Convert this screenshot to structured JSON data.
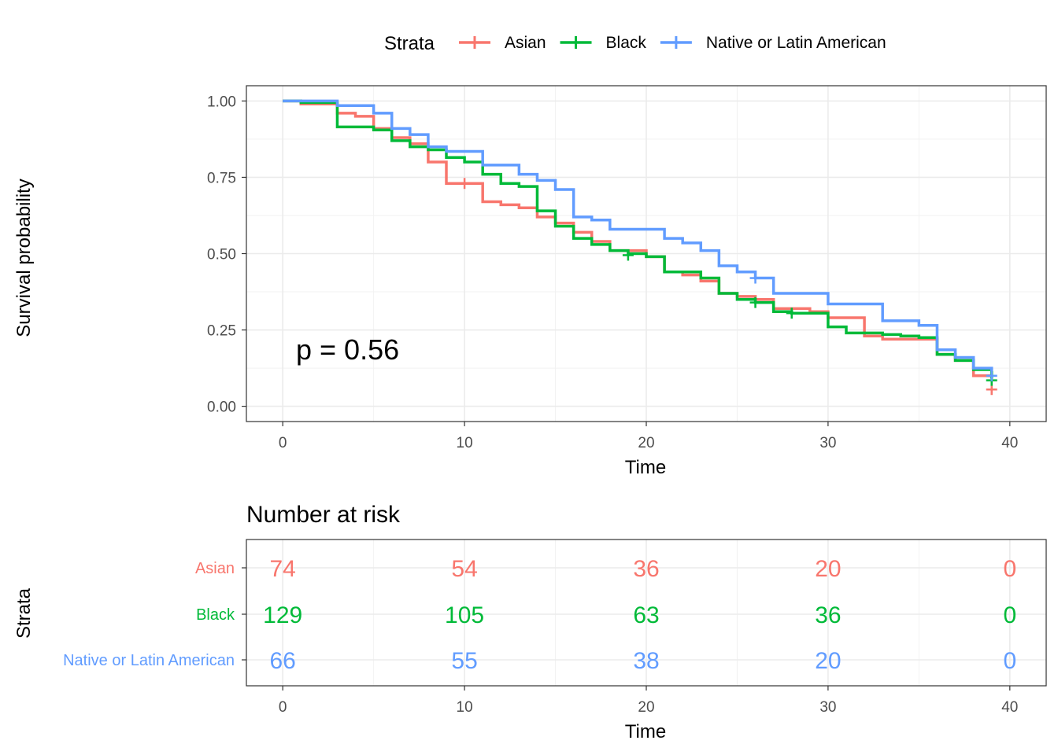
{
  "legend": {
    "title": "Strata",
    "items": [
      {
        "label": "Asian",
        "color": "#F8766D"
      },
      {
        "label": "Black",
        "color": "#00BA38"
      },
      {
        "label": "Native or Latin American",
        "color": "#619CFF"
      }
    ]
  },
  "pvalue_text": "p = 0.56",
  "risk_table": {
    "title": "Number at risk",
    "ylabel": "Strata",
    "xlabel": "Time",
    "times": [
      0,
      10,
      20,
      30,
      40
    ],
    "rows": [
      {
        "label": "Asian",
        "color": "#F8766D",
        "values": [
          74,
          54,
          36,
          20,
          0
        ]
      },
      {
        "label": "Black",
        "color": "#00BA38",
        "values": [
          129,
          105,
          63,
          36,
          0
        ]
      },
      {
        "label": "Native or Latin American",
        "color": "#619CFF",
        "values": [
          66,
          55,
          38,
          20,
          0
        ]
      }
    ]
  },
  "chart_data": {
    "type": "line",
    "subtype": "kaplan-meier step",
    "xlabel": "Time",
    "ylabel": "Survival probability",
    "xlim": [
      -2,
      42
    ],
    "ylim": [
      -0.05,
      1.05
    ],
    "xticks": [
      0,
      10,
      20,
      30,
      40
    ],
    "yticks": [
      0.0,
      0.25,
      0.5,
      0.75,
      1.0
    ],
    "ytick_labels": [
      "0.00",
      "0.25",
      "0.50",
      "0.75",
      "1.00"
    ],
    "grid": true,
    "legend_position": "top",
    "series": [
      {
        "name": "Asian",
        "color": "#F8766D",
        "steps": [
          [
            0,
            1.0
          ],
          [
            1,
            0.99
          ],
          [
            3,
            0.96
          ],
          [
            4,
            0.95
          ],
          [
            5,
            0.91
          ],
          [
            6,
            0.88
          ],
          [
            7,
            0.86
          ],
          [
            8,
            0.8
          ],
          [
            9,
            0.73
          ],
          [
            11,
            0.67
          ],
          [
            12,
            0.66
          ],
          [
            13,
            0.65
          ],
          [
            14,
            0.62
          ],
          [
            15,
            0.6
          ],
          [
            16,
            0.57
          ],
          [
            17,
            0.54
          ],
          [
            18,
            0.51
          ],
          [
            20,
            0.49
          ],
          [
            21,
            0.44
          ],
          [
            22,
            0.43
          ],
          [
            23,
            0.41
          ],
          [
            24,
            0.37
          ],
          [
            25,
            0.36
          ],
          [
            26,
            0.35
          ],
          [
            27,
            0.32
          ],
          [
            29,
            0.31
          ],
          [
            30,
            0.29
          ],
          [
            32,
            0.23
          ],
          [
            33,
            0.22
          ],
          [
            35,
            0.22
          ],
          [
            36,
            0.17
          ],
          [
            37,
            0.15
          ],
          [
            38,
            0.1
          ],
          [
            39,
            0.09
          ]
        ],
        "censor": [
          [
            10,
            0.73
          ],
          [
            39,
            0.055
          ]
        ]
      },
      {
        "name": "Black",
        "color": "#00BA38",
        "steps": [
          [
            0,
            1.0
          ],
          [
            1,
            0.995
          ],
          [
            3,
            0.915
          ],
          [
            5,
            0.905
          ],
          [
            6,
            0.87
          ],
          [
            7,
            0.85
          ],
          [
            8,
            0.84
          ],
          [
            9,
            0.815
          ],
          [
            10,
            0.8
          ],
          [
            11,
            0.76
          ],
          [
            12,
            0.73
          ],
          [
            13,
            0.72
          ],
          [
            14,
            0.64
          ],
          [
            15,
            0.59
          ],
          [
            16,
            0.55
          ],
          [
            17,
            0.53
          ],
          [
            18,
            0.51
          ],
          [
            19,
            0.5
          ],
          [
            20,
            0.49
          ],
          [
            21,
            0.44
          ],
          [
            23,
            0.42
          ],
          [
            24,
            0.37
          ],
          [
            25,
            0.35
          ],
          [
            26,
            0.34
          ],
          [
            27,
            0.31
          ],
          [
            28,
            0.305
          ],
          [
            29,
            0.305
          ],
          [
            30,
            0.26
          ],
          [
            31,
            0.24
          ],
          [
            33,
            0.235
          ],
          [
            34,
            0.23
          ],
          [
            35,
            0.225
          ],
          [
            36,
            0.17
          ],
          [
            37,
            0.15
          ],
          [
            38,
            0.12
          ],
          [
            39,
            0.09
          ]
        ],
        "censor": [
          [
            19,
            0.495
          ],
          [
            26,
            0.34
          ],
          [
            28,
            0.305
          ],
          [
            39,
            0.085
          ]
        ]
      },
      {
        "name": "Native or Latin American",
        "color": "#619CFF",
        "steps": [
          [
            0,
            1.0
          ],
          [
            3,
            0.985
          ],
          [
            5,
            0.96
          ],
          [
            6,
            0.91
          ],
          [
            7,
            0.89
          ],
          [
            8,
            0.85
          ],
          [
            9,
            0.835
          ],
          [
            11,
            0.79
          ],
          [
            13,
            0.76
          ],
          [
            14,
            0.74
          ],
          [
            15,
            0.71
          ],
          [
            16,
            0.62
          ],
          [
            17,
            0.61
          ],
          [
            18,
            0.58
          ],
          [
            21,
            0.55
          ],
          [
            22,
            0.535
          ],
          [
            23,
            0.51
          ],
          [
            24,
            0.46
          ],
          [
            25,
            0.44
          ],
          [
            26,
            0.42
          ],
          [
            27,
            0.37
          ],
          [
            29,
            0.37
          ],
          [
            30,
            0.335
          ],
          [
            33,
            0.28
          ],
          [
            35,
            0.265
          ],
          [
            36,
            0.185
          ],
          [
            37,
            0.16
          ],
          [
            38,
            0.125
          ],
          [
            39,
            0.115
          ]
        ],
        "censor": [
          [
            26,
            0.42
          ],
          [
            39,
            0.1
          ]
        ]
      }
    ]
  }
}
